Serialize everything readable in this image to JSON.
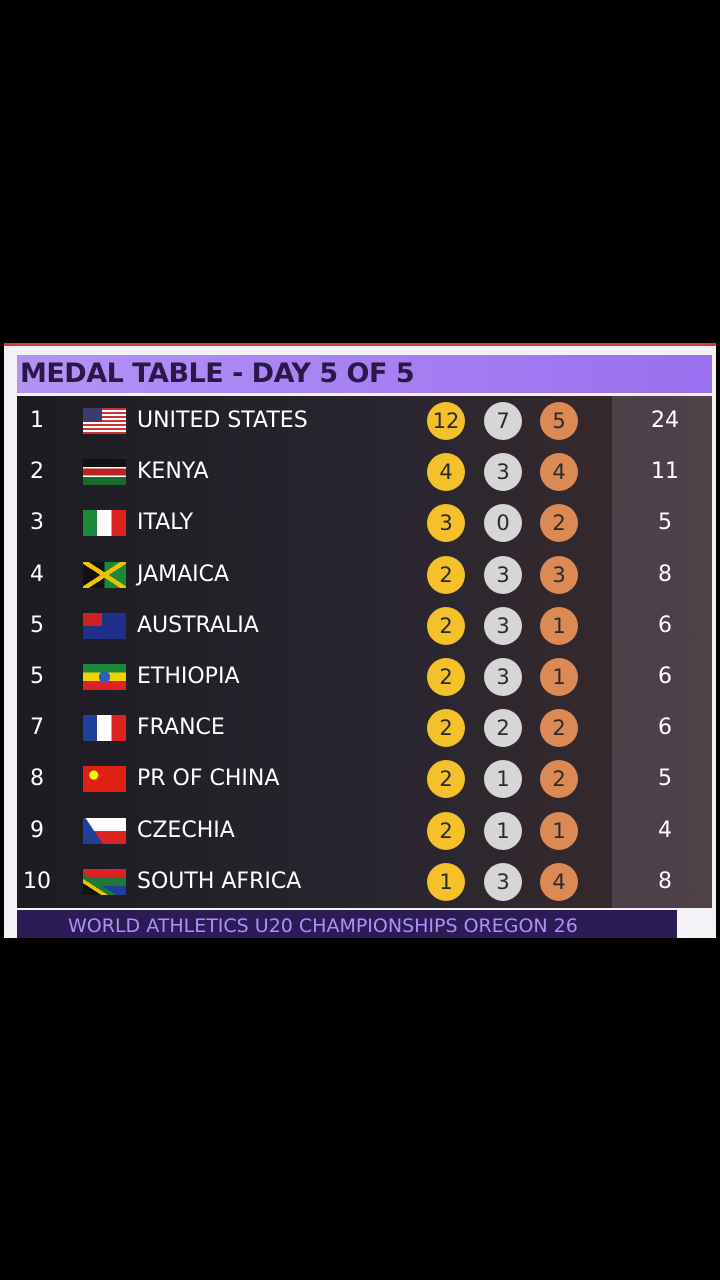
{
  "header": {
    "title": "MEDAL TABLE - DAY 5 OF 5"
  },
  "table": {
    "rows": [
      [
        1,
        "UNITED STATES",
        12,
        7,
        5,
        24
      ],
      [
        2,
        "KENYA",
        4,
        3,
        4,
        11
      ],
      [
        3,
        "ITALY",
        3,
        0,
        2,
        5
      ],
      [
        4,
        "JAMAICA",
        2,
        3,
        3,
        8
      ],
      [
        5,
        "AUSTRALIA",
        2,
        3,
        1,
        6
      ],
      [
        5,
        "ETHIOPIA",
        2,
        3,
        1,
        6
      ],
      [
        7,
        "FRANCE",
        2,
        2,
        2,
        6
      ],
      [
        8,
        "PR OF CHINA",
        2,
        1,
        2,
        5
      ],
      [
        9,
        "CZECHIA",
        2,
        1,
        1,
        4
      ],
      [
        10,
        "SOUTH AFRICA",
        1,
        3,
        4,
        8
      ]
    ]
  },
  "footer": {
    "text": "WORLD ATHLETICS U20 CHAMPIONSHIPS OREGON 26"
  }
}
